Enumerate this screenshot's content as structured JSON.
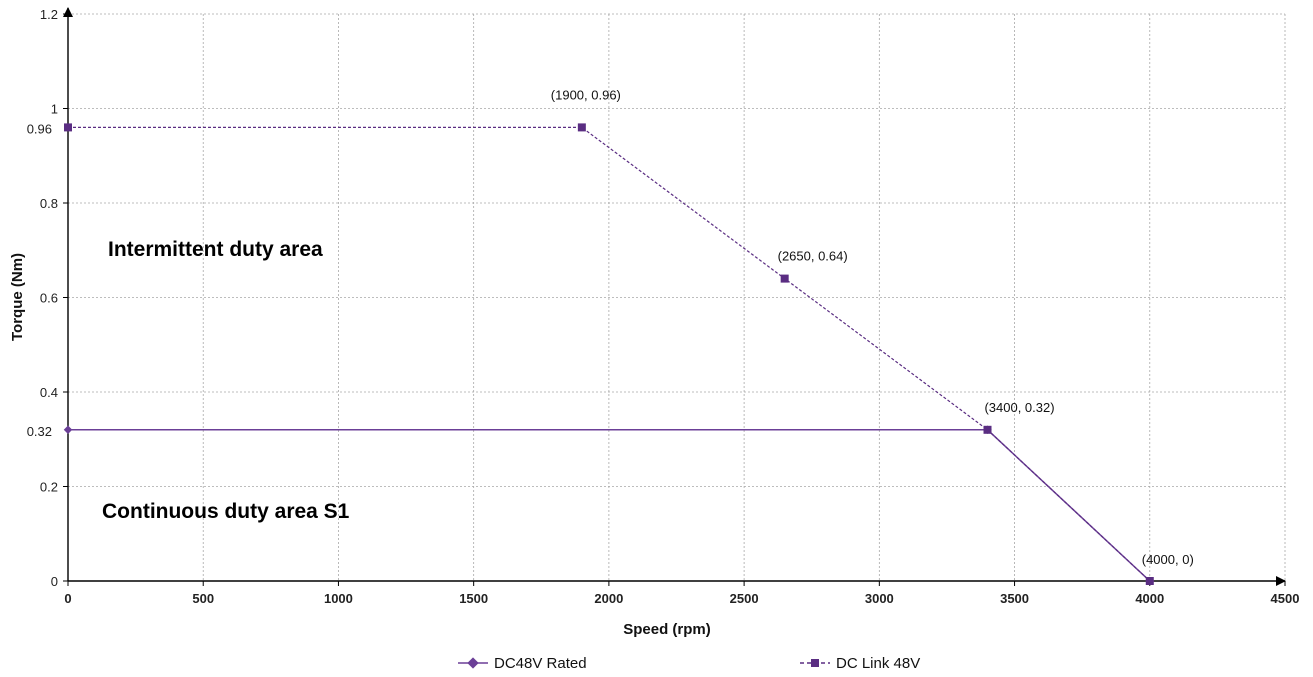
{
  "chart_data": {
    "type": "line",
    "title": "",
    "xlabel": "Speed (rpm)",
    "ylabel": "Torque (Nm)",
    "xlim": [
      0,
      4500
    ],
    "ylim": [
      0,
      1.2
    ],
    "xticks": [
      0,
      500,
      1000,
      1500,
      2000,
      2500,
      3000,
      3500,
      4000,
      4500
    ],
    "yticks": [
      0,
      0.2,
      0.4,
      0.6,
      0.8,
      1,
      1.2
    ],
    "xtick_labels": [
      "0",
      "500",
      "1000",
      "1500",
      "2000",
      "2500",
      "3000",
      "3500",
      "4000",
      "4500"
    ],
    "ytick_labels": [
      "0",
      "0.2",
      "0.4",
      "0.6",
      "0.8",
      "1",
      "1.2"
    ],
    "grid": true,
    "legend_position": "bottom-center",
    "series": [
      {
        "name": "DC48V Rated",
        "style": "solid",
        "marker": "diamond",
        "color": "#6b3f97",
        "x": [
          0,
          3400,
          4000
        ],
        "y": [
          0.32,
          0.32,
          0
        ]
      },
      {
        "name": "DC Link 48V",
        "style": "dashed",
        "marker": "square",
        "color": "#5a2d82",
        "x": [
          0,
          1900,
          2650,
          3400,
          4000
        ],
        "y": [
          0.96,
          0.96,
          0.64,
          0.32,
          0
        ]
      }
    ],
    "annotations": [
      {
        "text": "(1900, 0.96)",
        "x": 1900,
        "y": 0.96
      },
      {
        "text": "(2650, 0.64)",
        "x": 2650,
        "y": 0.64
      },
      {
        "text": "(3400, 0.32)",
        "x": 3400,
        "y": 0.32
      },
      {
        "text": "(4000, 0)",
        "x": 4000,
        "y": 0
      }
    ],
    "side_labels": [
      {
        "text": "0.96",
        "y": 0.96
      },
      {
        "text": "0.32",
        "y": 0.32
      }
    ],
    "area_labels": [
      {
        "text": "Intermittent duty area"
      },
      {
        "text": "Continuous duty area S1"
      }
    ]
  }
}
